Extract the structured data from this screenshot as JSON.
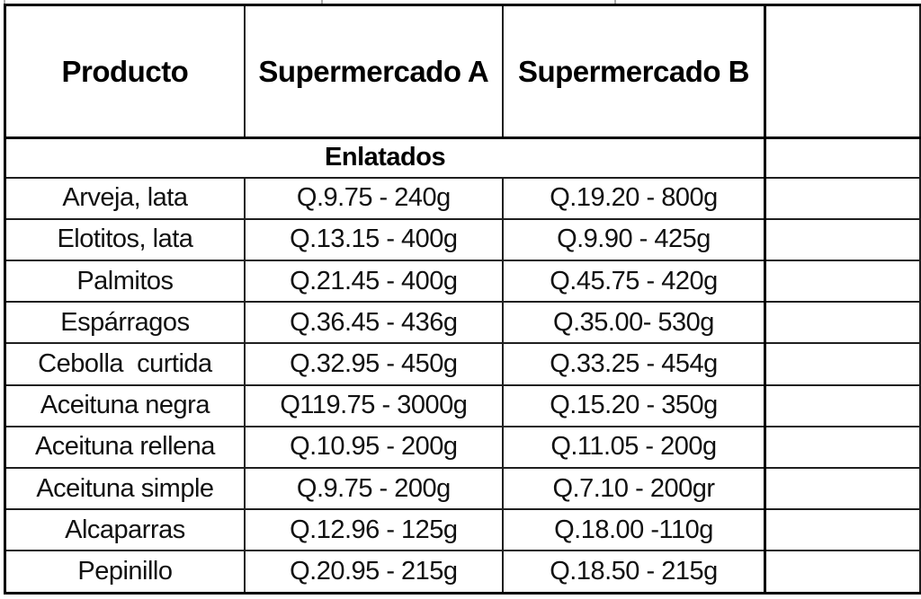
{
  "colors": {
    "background": "#ffffff",
    "border": "#000000",
    "text": "#000000"
  },
  "table": {
    "columns": [
      "Producto",
      "Supermercado A",
      "Supermercado B"
    ],
    "section": "Enlatados",
    "rows": [
      {
        "producto": "Arveja, lata",
        "a": "Q.9.75 - 240g",
        "b": "Q.19.20 - 800g"
      },
      {
        "producto": "Elotitos, lata",
        "a": "Q.13.15 - 400g",
        "b": "Q.9.90 - 425g"
      },
      {
        "producto": "Palmitos",
        "a": "Q.21.45 - 400g",
        "b": "Q.45.75 - 420g"
      },
      {
        "producto": "Espárragos",
        "a": "Q.36.45 - 436g",
        "b": "Q.35.00- 530g"
      },
      {
        "producto": "Cebolla  curtida",
        "a": "Q.32.95 - 450g",
        "b": "Q.33.25 - 454g"
      },
      {
        "producto": "Aceituna negra",
        "a": "Q119.75 - 3000g",
        "b": "Q.15.20 - 350g"
      },
      {
        "producto": "Aceituna rellena",
        "a": "Q.10.95 - 200g",
        "b": "Q.11.05 - 200g"
      },
      {
        "producto": "Aceituna simple",
        "a": "Q.9.75 - 200g",
        "b": "Q.7.10 - 200gr"
      },
      {
        "producto": "Alcaparras",
        "a": "Q.12.96 - 125g",
        "b": "Q.18.00 -110g"
      },
      {
        "producto": "Pepinillo",
        "a": "Q.20.95 - 215g",
        "b": "Q.18.50 - 215g"
      }
    ]
  }
}
